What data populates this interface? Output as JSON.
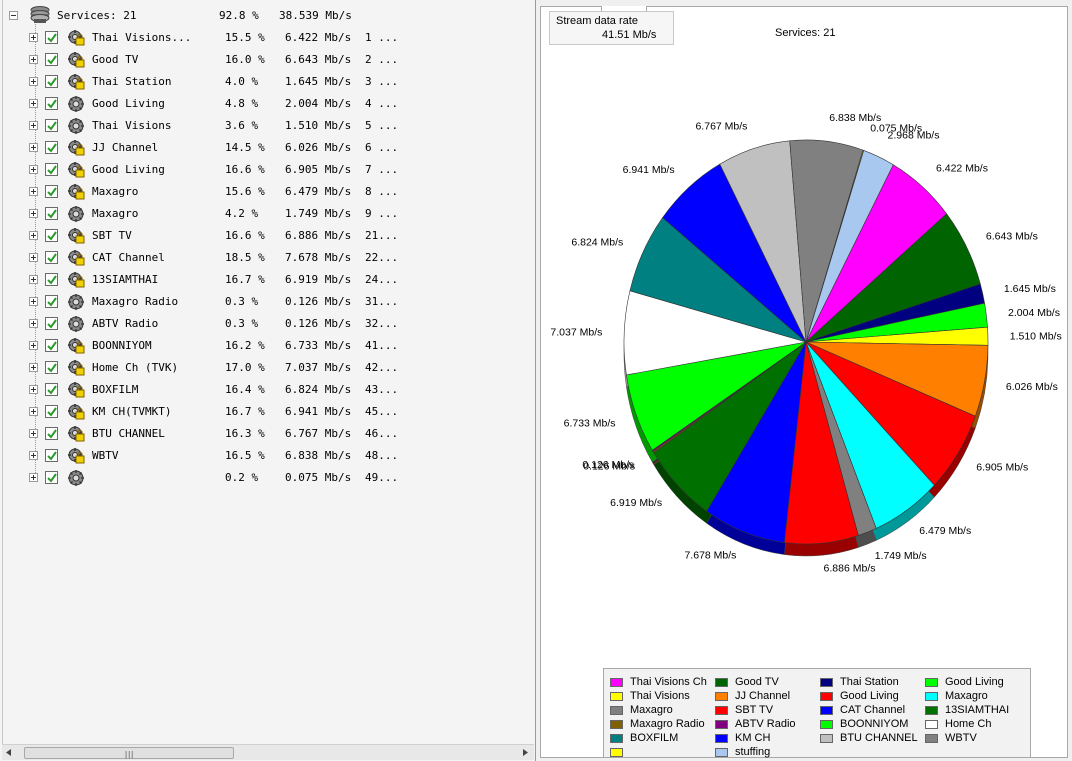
{
  "tree": {
    "root": {
      "name": "Services: 21",
      "percent": "92.8 %",
      "rate": "38.539 Mb/s"
    },
    "rows": [
      {
        "name": "Thai Visions...",
        "percent": "15.5 %",
        "rate": "6.422 Mb/s",
        "id": "1 ...",
        "icon": "tv-lock-icon"
      },
      {
        "name": "Good TV",
        "percent": "16.0 %",
        "rate": "6.643 Mb/s",
        "id": "2 ...",
        "icon": "tv-lock-icon"
      },
      {
        "name": "Thai Station",
        "percent": "4.0 %",
        "rate": "1.645 Mb/s",
        "id": "3 ...",
        "icon": "tv-lock-icon"
      },
      {
        "name": "Good Living",
        "percent": "4.8 %",
        "rate": "2.004 Mb/s",
        "id": "4 ...",
        "icon": "radio-icon"
      },
      {
        "name": "Thai Visions",
        "percent": "3.6 %",
        "rate": "1.510 Mb/s",
        "id": "5 ...",
        "icon": "radio-icon"
      },
      {
        "name": "JJ Channel",
        "percent": "14.5 %",
        "rate": "6.026 Mb/s",
        "id": "6 ...",
        "icon": "tv-lock-icon"
      },
      {
        "name": "Good Living",
        "percent": "16.6 %",
        "rate": "6.905 Mb/s",
        "id": "7 ...",
        "icon": "tv-lock-icon"
      },
      {
        "name": "Maxagro",
        "percent": "15.6 %",
        "rate": "6.479 Mb/s",
        "id": "8 ...",
        "icon": "tv-lock-icon"
      },
      {
        "name": "Maxagro",
        "percent": "4.2 %",
        "rate": "1.749 Mb/s",
        "id": "9 ...",
        "icon": "radio-icon"
      },
      {
        "name": "SBT TV",
        "percent": "16.6 %",
        "rate": "6.886 Mb/s",
        "id": "21...",
        "icon": "tv-lock-icon"
      },
      {
        "name": "CAT Channel",
        "percent": "18.5 %",
        "rate": "7.678 Mb/s",
        "id": "22...",
        "icon": "tv-lock-icon"
      },
      {
        "name": "13SIAMTHAI",
        "percent": "16.7 %",
        "rate": "6.919 Mb/s",
        "id": "24...",
        "icon": "tv-lock-icon"
      },
      {
        "name": "Maxagro Radio",
        "percent": "0.3 %",
        "rate": "0.126 Mb/s",
        "id": "31...",
        "icon": "radio-icon"
      },
      {
        "name": "ABTV Radio",
        "percent": "0.3 %",
        "rate": "0.126 Mb/s",
        "id": "32...",
        "icon": "radio-icon"
      },
      {
        "name": "BOONNIYOM",
        "percent": "16.2 %",
        "rate": "6.733 Mb/s",
        "id": "41...",
        "icon": "tv-lock-icon"
      },
      {
        "name": "Home Ch (TVK)",
        "percent": "17.0 %",
        "rate": "7.037 Mb/s",
        "id": "42...",
        "icon": "tv-lock-icon"
      },
      {
        "name": "BOXFILM",
        "percent": "16.4 %",
        "rate": "6.824 Mb/s",
        "id": "43...",
        "icon": "tv-lock-icon"
      },
      {
        "name": "KM CH(TVMKT)",
        "percent": "16.7 %",
        "rate": "6.941 Mb/s",
        "id": "45...",
        "icon": "tv-lock-icon"
      },
      {
        "name": "BTU CHANNEL",
        "percent": "16.3 %",
        "rate": "6.767 Mb/s",
        "id": "46...",
        "icon": "tv-lock-icon"
      },
      {
        "name": "WBTV",
        "percent": "16.5 %",
        "rate": "6.838 Mb/s",
        "id": "48...",
        "icon": "tv-lock-icon"
      },
      {
        "name": "",
        "percent": "0.2 %",
        "rate": "0.075 Mb/s",
        "id": "49...",
        "icon": "radio-icon"
      }
    ]
  },
  "scrollbar": {
    "grip": "|||"
  },
  "stats": {
    "rate_label": "Stream data rate",
    "rate_value": "41.51 Mb/s",
    "services": "Services: 21"
  },
  "chart_data": {
    "type": "pie",
    "title": "",
    "unit": "Mb/s",
    "slices": [
      {
        "label": "Thai Visions Ch",
        "value": 6.422,
        "text": "6.422 Mb/s",
        "color": "#ff00ff"
      },
      {
        "label": "Good TV",
        "value": 6.643,
        "text": "6.643 Mb/s",
        "color": "#006400"
      },
      {
        "label": "Thai Station",
        "value": 1.645,
        "text": "1.645 Mb/s",
        "color": "#000080"
      },
      {
        "label": "Good Living",
        "value": 2.004,
        "text": "2.004 Mb/s",
        "color": "#00ff00"
      },
      {
        "label": "Thai Visions",
        "value": 1.51,
        "text": "1.510 Mb/s",
        "color": "#ffff00"
      },
      {
        "label": "JJ Channel",
        "value": 6.026,
        "text": "6.026 Mb/s",
        "color": "#ff8000"
      },
      {
        "label": "Good Living",
        "value": 6.905,
        "text": "6.905 Mb/s",
        "color": "#ff0000"
      },
      {
        "label": "Maxagro",
        "value": 6.479,
        "text": "6.479 Mb/s",
        "color": "#00ffff"
      },
      {
        "label": "Maxagro",
        "value": 1.749,
        "text": "1.749 Mb/s",
        "color": "#808080"
      },
      {
        "label": "SBT TV",
        "value": 6.886,
        "text": "6.886 Mb/s",
        "color": "#ff0000"
      },
      {
        "label": "CAT Channel",
        "value": 7.678,
        "text": "7.678 Mb/s",
        "color": "#0000ff"
      },
      {
        "label": "13SIAMTHAI",
        "value": 6.919,
        "text": "6.919 Mb/s",
        "color": "#007000"
      },
      {
        "label": "Maxagro Radio",
        "value": 0.126,
        "text": "0.126 Mb/s",
        "color": "#806000"
      },
      {
        "label": "ABTV Radio",
        "value": 0.126,
        "text": "0.126 Mb/s",
        "color": "#800080"
      },
      {
        "label": "BOONNIYOM",
        "value": 6.733,
        "text": "6.733 Mb/s",
        "color": "#00ff00"
      },
      {
        "label": "Home Ch",
        "value": 7.037,
        "text": "7.037 Mb/s",
        "color": "#ffffff"
      },
      {
        "label": "BOXFILM",
        "value": 6.824,
        "text": "6.824 Mb/s",
        "color": "#008080"
      },
      {
        "label": "KM CH",
        "value": 6.941,
        "text": "6.941 Mb/s",
        "color": "#0000ff"
      },
      {
        "label": "BTU CHANNEL",
        "value": 6.767,
        "text": "6.767 Mb/s",
        "color": "#c0c0c0"
      },
      {
        "label": "WBTV",
        "value": 6.838,
        "text": "6.838 Mb/s",
        "color": "#808080"
      },
      {
        "label": "",
        "value": 0.075,
        "text": "0.075 Mb/s",
        "color": "#ffff00"
      },
      {
        "label": "stuffing",
        "value": 2.968,
        "text": "2.968 Mb/s",
        "color": "#a8c8f0"
      }
    ]
  }
}
